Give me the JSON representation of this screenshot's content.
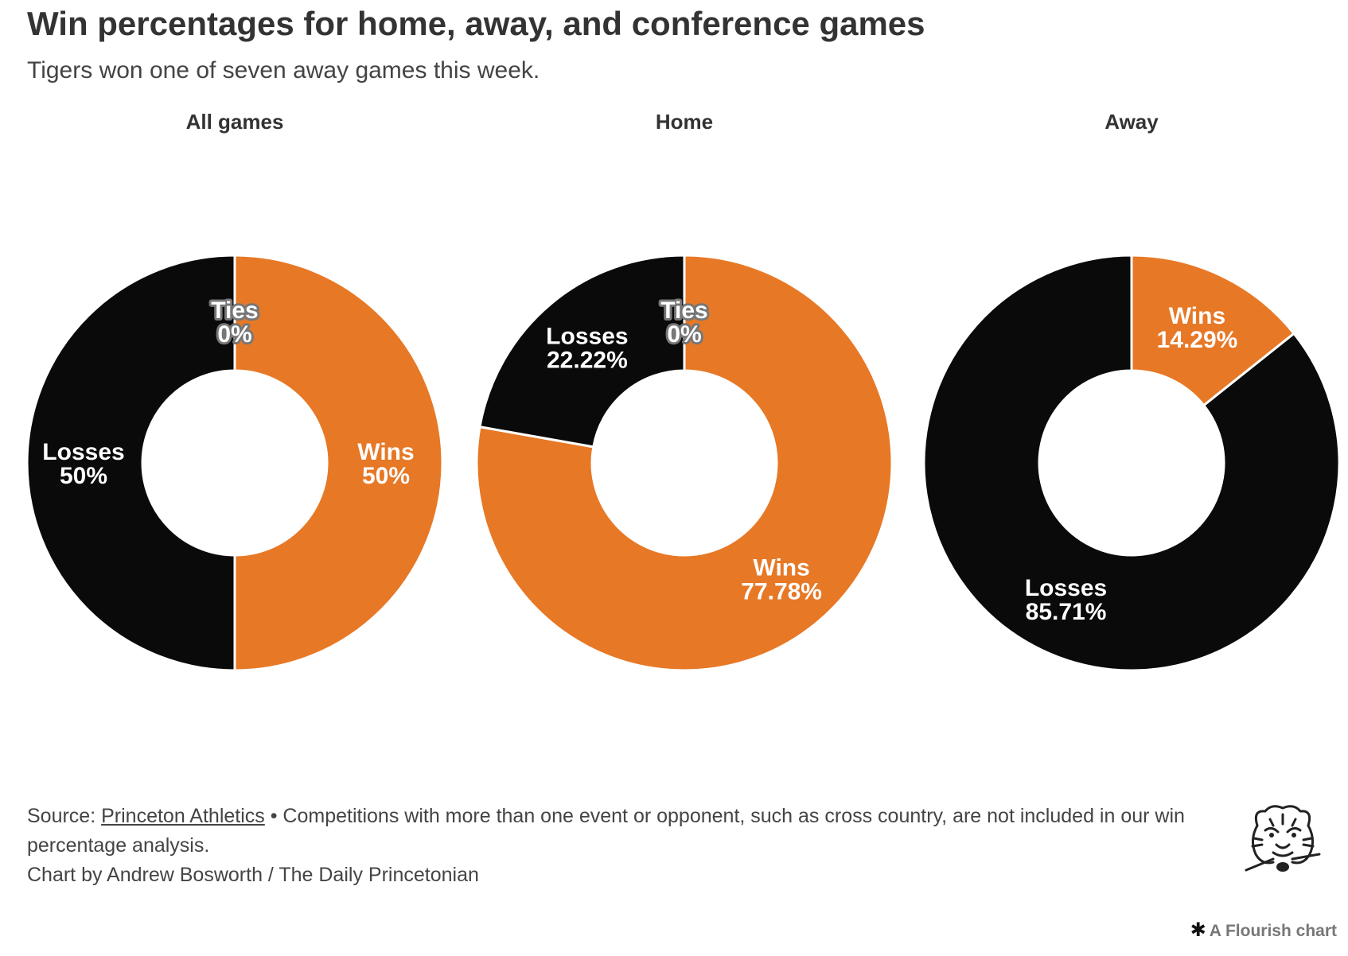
{
  "title": "Win percentages for home, away, and conference games",
  "subtitle": "Tigers won one of seven away games this week.",
  "colors": {
    "wins": "#E77826",
    "losses": "#0A0A0A",
    "ties": "#777777"
  },
  "chart_data": [
    {
      "type": "donut",
      "title": "All games",
      "slices": [
        {
          "name": "Wins",
          "value": 50,
          "label": "50%"
        },
        {
          "name": "Losses",
          "value": 50,
          "label": "50%"
        },
        {
          "name": "Ties",
          "value": 0,
          "label": "0%"
        }
      ]
    },
    {
      "type": "donut",
      "title": "Home",
      "slices": [
        {
          "name": "Wins",
          "value": 77.78,
          "label": "77.78%"
        },
        {
          "name": "Losses",
          "value": 22.22,
          "label": "22.22%"
        },
        {
          "name": "Ties",
          "value": 0,
          "label": "0%"
        }
      ]
    },
    {
      "type": "donut",
      "title": "Away",
      "slices": [
        {
          "name": "Wins",
          "value": 14.29,
          "label": "14.29%"
        },
        {
          "name": "Losses",
          "value": 85.71,
          "label": "85.71%"
        }
      ]
    }
  ],
  "footer": {
    "source_prefix": "Source: ",
    "source_link": "Princeton Athletics",
    "source_note": " • Competitions with more than one event or opponent, such as cross country, are not included in our win percentage analysis.",
    "credit": "Chart by Andrew Bosworth / The Daily Princetonian"
  },
  "badge": {
    "icon": "asterisk-icon",
    "text": "A Flourish chart"
  }
}
